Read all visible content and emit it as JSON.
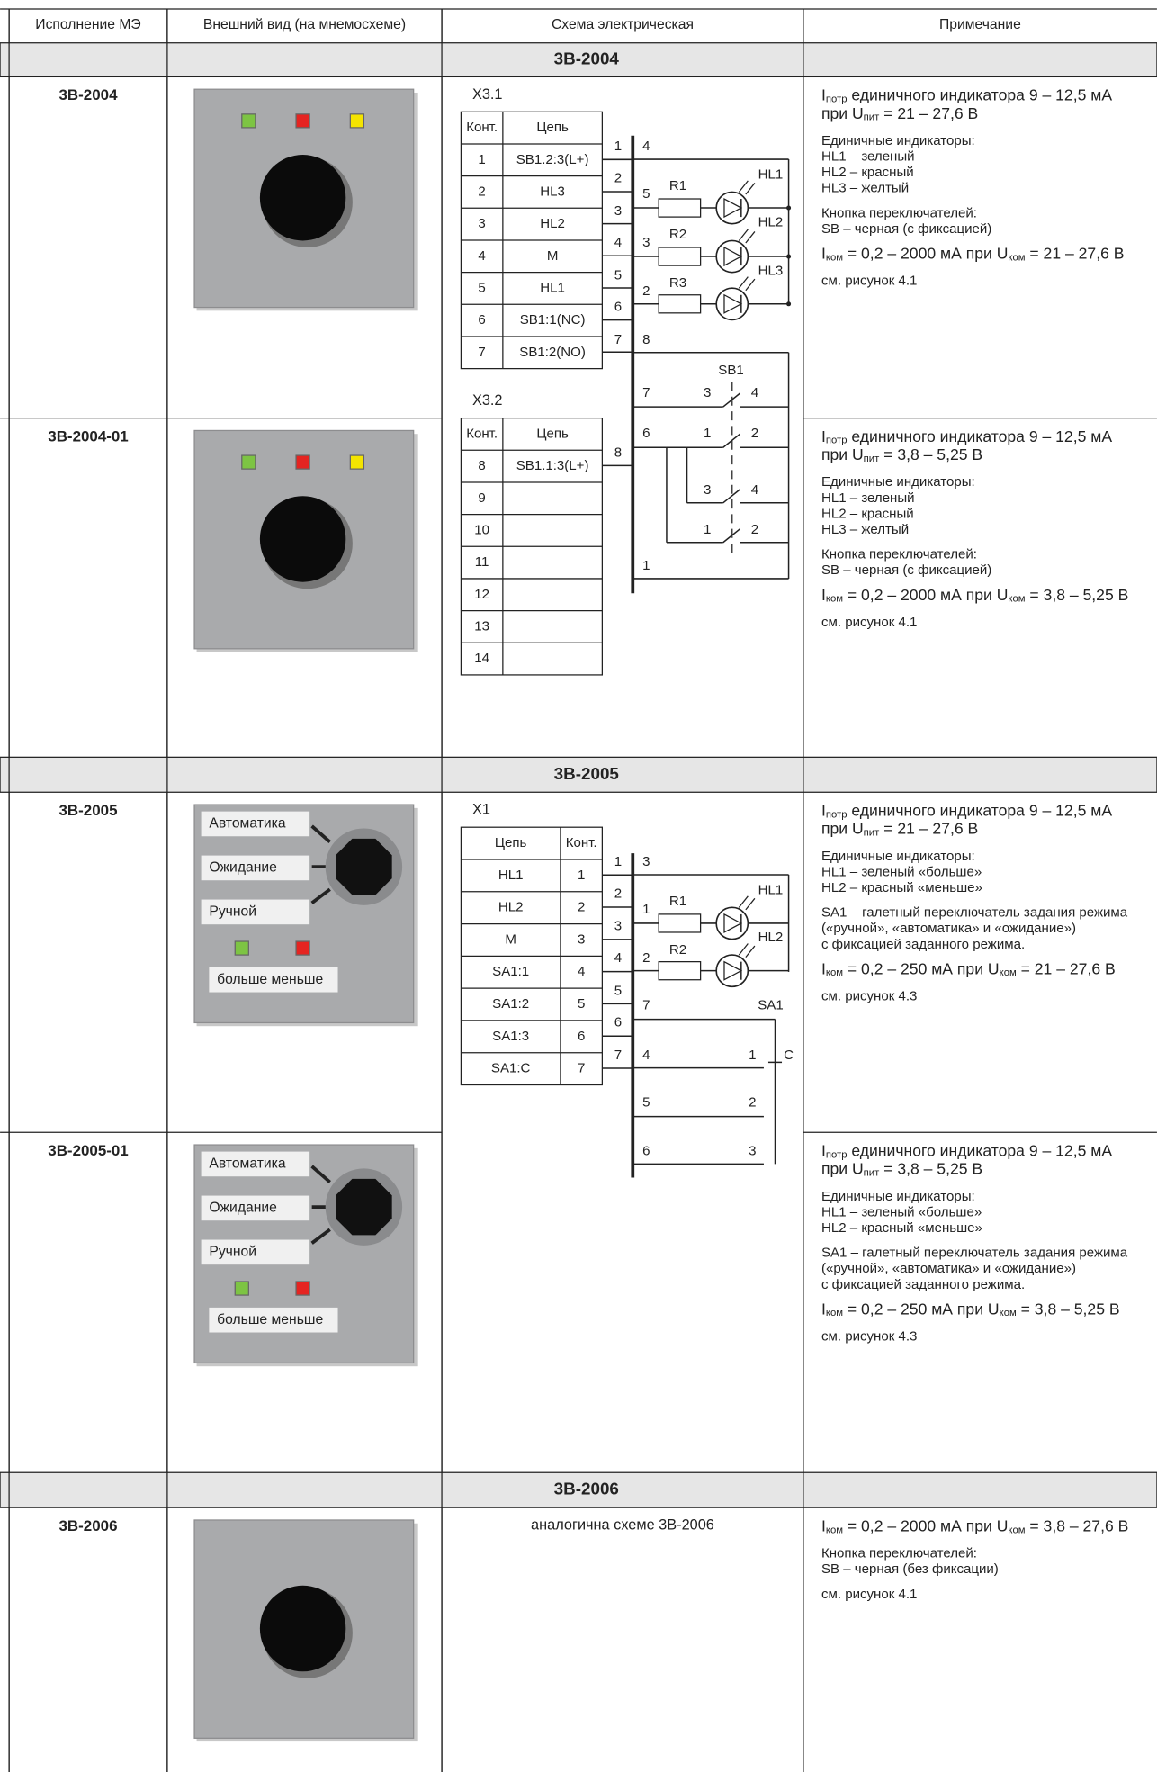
{
  "header": [
    "Исполнение МЭ",
    "Внешний вид (на мнемосхеме)",
    "Схема электрическая",
    "Примечание"
  ],
  "sections": [
    {
      "title": "3В-2004",
      "rows": [
        {
          "model": "3В-2004",
          "notes": [
            [
              [
                "I",
                {
                  "sub": "потр"
                },
                " единичного индикатора 9 – 12,5 мА"
              ],
              [
                "при U",
                {
                  "sub": "пит"
                },
                " = 21 – 27,6 В"
              ]
            ],
            [
              [
                "Единичные индикаторы:"
              ],
              [
                "HL1 – зеленый"
              ],
              [
                "HL2 – красный"
              ],
              [
                "HL3 – желтый"
              ]
            ],
            [
              [
                "Кнопка переключателей:"
              ],
              [
                "SB – черная (с фиксацией)"
              ]
            ],
            [
              [
                "I",
                {
                  "sub": "ком"
                },
                " = 0,2 – 2000 мА при U",
                {
                  "sub": "ком"
                },
                " = 21 – 27,6 В"
              ]
            ],
            [
              [
                "см. рисунок 4.1"
              ]
            ]
          ]
        },
        {
          "model": "3В-2004-01",
          "notes": [
            [
              [
                "I",
                {
                  "sub": "потр"
                },
                " единичного индикатора 9 – 12,5 мА"
              ],
              [
                "при U",
                {
                  "sub": "пит"
                },
                " = 3,8 – 5,25 В"
              ]
            ],
            [
              [
                "Единичные индикаторы:"
              ],
              [
                "HL1 – зеленый"
              ],
              [
                "HL2 – красный"
              ],
              [
                "HL3 – желтый"
              ]
            ],
            [
              [
                "Кнопка переключателей:"
              ],
              [
                "SB – черная (с фиксацией)"
              ]
            ],
            [
              [
                "I",
                {
                  "sub": "ком"
                },
                " = 0,2 – 2000 мА при U",
                {
                  "sub": "ком"
                },
                " = 3,8 – 5,25 В"
              ]
            ],
            [
              [
                "см. рисунок 4.1"
              ]
            ]
          ]
        }
      ],
      "scheme": {
        "connectors": [
          {
            "name": "X3.1",
            "header": [
              "Конт.",
              "Цепь"
            ],
            "rows": [
              [
                "1",
                "SB1.2:3(L+)"
              ],
              [
                "2",
                "HL3"
              ],
              [
                "3",
                "HL2"
              ],
              [
                "4",
                "M"
              ],
              [
                "5",
                "HL1"
              ],
              [
                "6",
                "SB1:1(NC)"
              ],
              [
                "7",
                "SB1:2(NO)"
              ]
            ]
          },
          {
            "name": "X3.2",
            "header": [
              "Конт.",
              "Цепь"
            ],
            "rows": [
              [
                "8",
                "SB1.1:3(L+)"
              ],
              [
                "9",
                ""
              ],
              [
                "10",
                ""
              ],
              [
                "11",
                ""
              ],
              [
                "12",
                ""
              ],
              [
                "13",
                ""
              ],
              [
                "14",
                ""
              ]
            ]
          }
        ],
        "labels": [
          "1",
          "2",
          "3",
          "4",
          "5",
          "6",
          "7",
          "4",
          "5",
          "3",
          "2",
          "8",
          "R1",
          "R2",
          "R3",
          "HL1",
          "HL2",
          "HL3",
          "SB1",
          "7",
          "3",
          "4",
          "6",
          "1",
          "2",
          "3",
          "4",
          "1",
          "2",
          "1",
          "8"
        ]
      }
    },
    {
      "title": "3В-2005",
      "rows": [
        {
          "model": "3В-2005",
          "panel": [
            "Автоматика",
            "Ожидание",
            "Ручной",
            "больше  меньше"
          ],
          "notes": [
            [
              [
                "I",
                {
                  "sub": "потр"
                },
                " единичного индикатора 9 – 12,5 мА"
              ],
              [
                "при U",
                {
                  "sub": "пит"
                },
                " = 21 – 27,6 В"
              ]
            ],
            [
              [
                "Единичные индикаторы:"
              ],
              [
                "HL1 – зеленый «больше»"
              ],
              [
                "HL2 – красный «меньше»"
              ]
            ],
            [
              [
                "SA1 – галетный переключатель задания режима"
              ],
              [
                "(«ручной», «автоматика» и «ожидание»)"
              ],
              [
                "с фиксацией заданного режима."
              ]
            ],
            [
              [
                "I",
                {
                  "sub": "ком"
                },
                " = 0,2 – 250 мА при U",
                {
                  "sub": "ком"
                },
                " = 21 – 27,6 В"
              ]
            ],
            [
              [
                "см. рисунок 4.3"
              ]
            ]
          ]
        },
        {
          "model": "3В-2005-01",
          "panel": [
            "Автоматика",
            "Ожидание",
            "Ручной",
            "больше  меньше"
          ],
          "notes": [
            [
              [
                "I",
                {
                  "sub": "потр"
                },
                " единичного индикатора 9 – 12,5 мА"
              ],
              [
                "при U",
                {
                  "sub": "пит"
                },
                " = 3,8 – 5,25 В"
              ]
            ],
            [
              [
                "Единичные индикаторы:"
              ],
              [
                "HL1 – зеленый «больше»"
              ],
              [
                "HL2 – красный «меньше»"
              ]
            ],
            [
              [
                "SA1 – галетный переключатель задания режима"
              ],
              [
                "(«ручной», «автоматика» и «ожидание»)"
              ],
              [
                "с фиксацией заданного режима."
              ]
            ],
            [
              [
                "I",
                {
                  "sub": "ком"
                },
                " = 0,2 – 250 мА при U",
                {
                  "sub": "ком"
                },
                " = 3,8 – 5,25 В"
              ]
            ],
            [
              [
                "см. рисунок 4.3"
              ]
            ]
          ]
        }
      ],
      "scheme": {
        "connectors": [
          {
            "name": "X1",
            "header": [
              "Цепь",
              "Конт."
            ],
            "rows": [
              [
                "HL1",
                "1"
              ],
              [
                "HL2",
                "2"
              ],
              [
                "M",
                "3"
              ],
              [
                "SA1:1",
                "4"
              ],
              [
                "SA1:2",
                "5"
              ],
              [
                "SA1:3",
                "6"
              ],
              [
                "SA1:C",
                "7"
              ]
            ]
          }
        ],
        "labels": [
          "1",
          "2",
          "3",
          "4",
          "5",
          "6",
          "7",
          "3",
          "1",
          "2",
          "7",
          "4",
          "5",
          "6",
          "R1",
          "R2",
          "HL1",
          "HL2",
          "SA1",
          "C",
          "1",
          "2",
          "3"
        ]
      }
    },
    {
      "title": "3В-2006",
      "rows": [
        {
          "model": "3В-2006",
          "notes": [
            [
              [
                "I",
                {
                  "sub": "ком"
                },
                " = 0,2 – 2000 мА при U",
                {
                  "sub": "ком"
                },
                " = 3,8 – 27,6 В"
              ]
            ],
            [
              [
                "Кнопка переключателей:"
              ],
              [
                "SB – черная (без фиксации)"
              ]
            ],
            [
              [
                "см. рисунок 4.1"
              ]
            ]
          ]
        }
      ],
      "scheme": {
        "text": "аналогична схеме 3В-2006"
      }
    }
  ]
}
